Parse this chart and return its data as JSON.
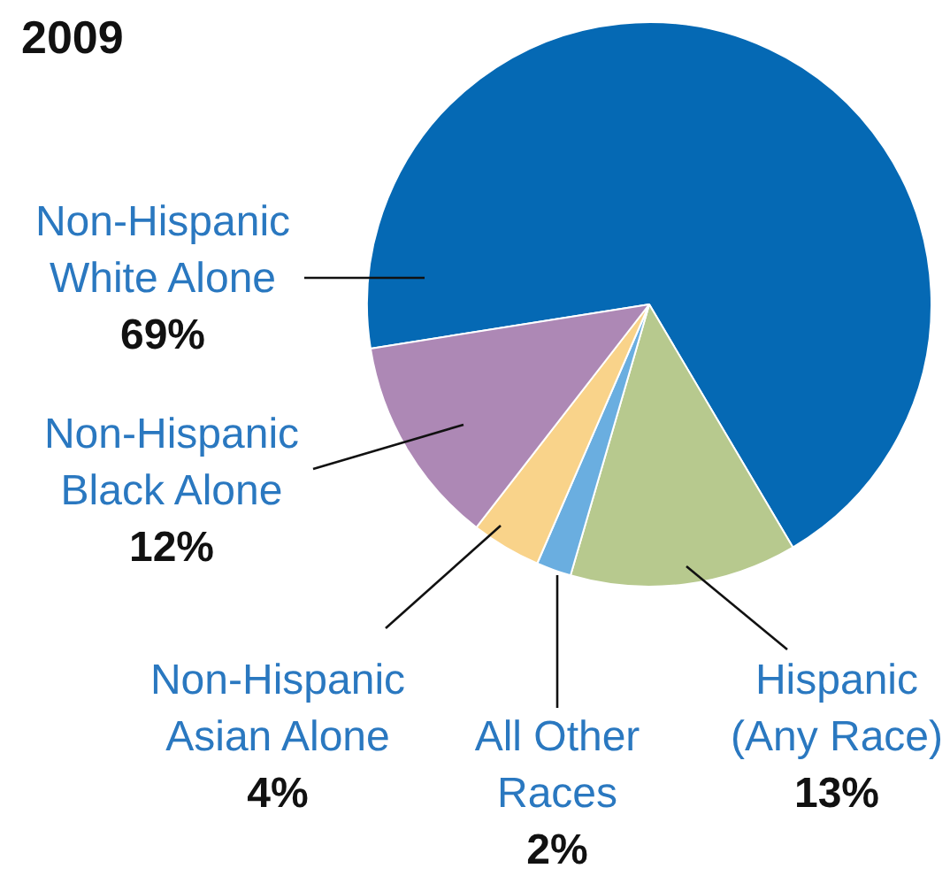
{
  "chart_data": {
    "type": "pie",
    "title": "2009",
    "categories": [
      "Non-Hispanic White Alone",
      "Hispanic (Any Race)",
      "All Other Races",
      "Non-Hispanic Asian Alone",
      "Non-Hispanic Black Alone"
    ],
    "values": [
      69,
      13,
      2,
      4,
      12
    ],
    "colors": [
      "#0569b4",
      "#b7c98e",
      "#6aaee0",
      "#f9d38a",
      "#ad88b5"
    ],
    "value_labels": [
      "69%",
      "13%",
      "2%",
      "4%",
      "12%"
    ],
    "legend": false
  }
}
